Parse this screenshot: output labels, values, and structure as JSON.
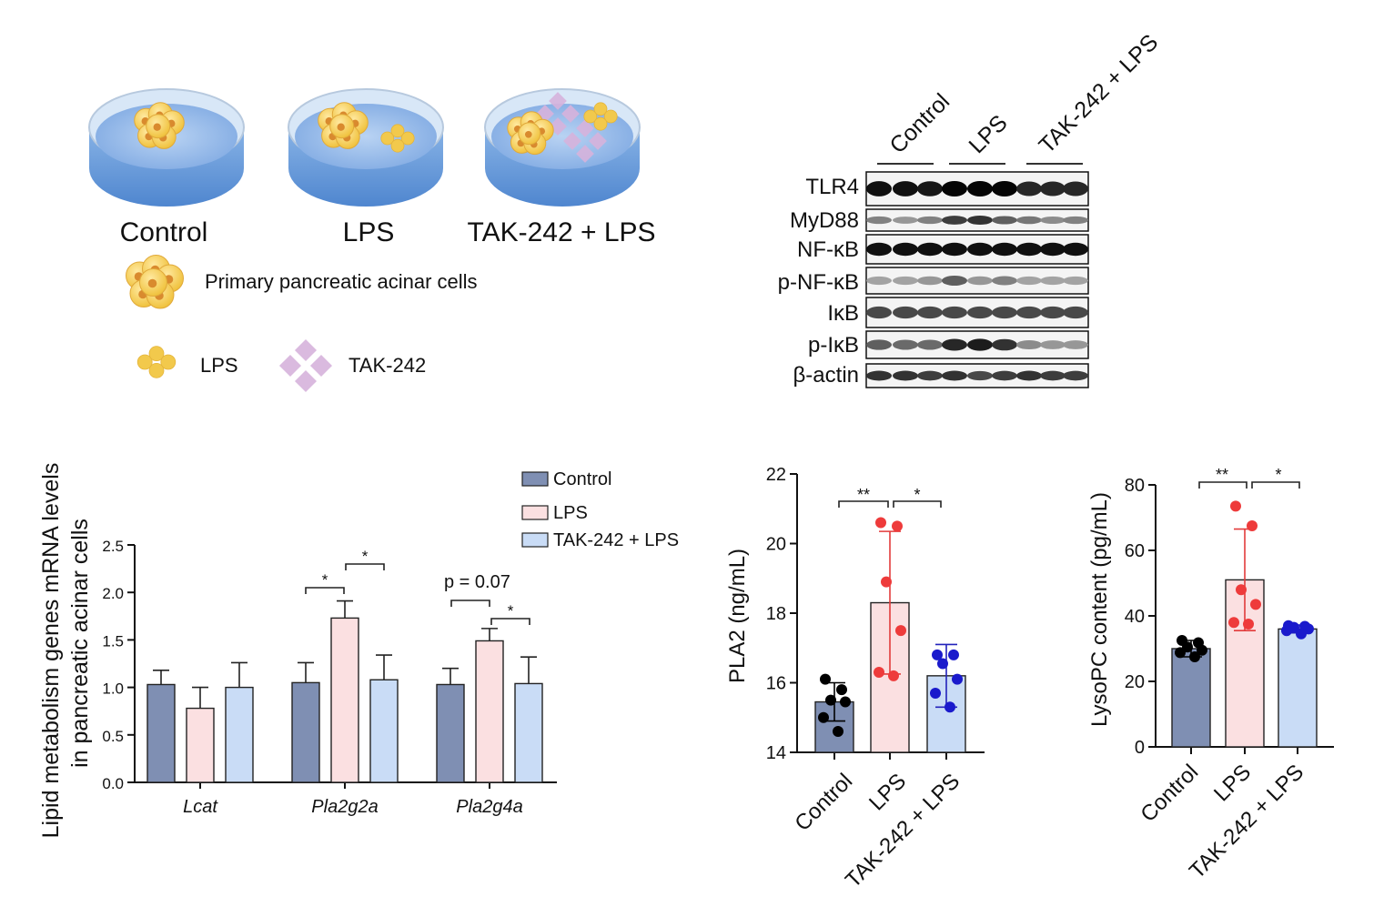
{
  "schematic": {
    "dish_labels": [
      "Control",
      "LPS",
      "TAK-242 + LPS"
    ],
    "legend": {
      "acinar_label": "Primary pancreatic acinar cells",
      "lps_label": "LPS",
      "tak_label": "TAK-242"
    },
    "colors": {
      "cell": "#f2c94c",
      "cell_core": "#d98a2e",
      "tak": "#d6b3dc",
      "medium": "#6fa1df"
    }
  },
  "western_blot": {
    "groups": [
      "Control",
      "LPS",
      "TAK-242 + LPS"
    ],
    "proteins": [
      "TLR4",
      "MyD88",
      "NF-κB",
      "p-NF-κB",
      "IκB",
      "p-IκB",
      "β-actin"
    ],
    "band_intensity": [
      [
        0.95,
        0.95,
        0.92,
        1.0,
        1.0,
        1.0,
        0.85,
        0.85,
        0.85
      ],
      [
        0.45,
        0.35,
        0.45,
        0.75,
        0.8,
        0.6,
        0.5,
        0.4,
        0.45
      ],
      [
        0.95,
        0.95,
        0.95,
        0.95,
        0.95,
        0.95,
        0.95,
        0.95,
        0.95
      ],
      [
        0.3,
        0.3,
        0.35,
        0.6,
        0.35,
        0.45,
        0.3,
        0.3,
        0.3
      ],
      [
        0.7,
        0.7,
        0.7,
        0.7,
        0.7,
        0.7,
        0.7,
        0.7,
        0.7
      ],
      [
        0.6,
        0.55,
        0.55,
        0.85,
        0.9,
        0.8,
        0.4,
        0.35,
        0.35
      ],
      [
        0.8,
        0.8,
        0.75,
        0.8,
        0.7,
        0.75,
        0.8,
        0.75,
        0.75
      ]
    ]
  },
  "chart_data": [
    {
      "type": "bar",
      "title": "",
      "ylabel_line1": "Lipid metabolism genes  mRNA levels",
      "ylabel_line2": "in pancreatic acinar cells",
      "xlabel": "",
      "ylim": [
        0,
        2.5
      ],
      "yticks": [
        "0.0",
        "0.5",
        "1.0",
        "1.5",
        "2.0",
        "2.5"
      ],
      "categories": [
        "Lcat",
        "Pla2g2a",
        "Pla2g4a"
      ],
      "series": [
        {
          "name": "Control",
          "values": [
            1.03,
            1.05,
            1.03
          ],
          "errors": [
            0.15,
            0.21,
            0.17
          ],
          "color": "#7f8fb3"
        },
        {
          "name": "LPS",
          "values": [
            0.78,
            1.73,
            1.49
          ],
          "errors": [
            0.22,
            0.18,
            0.13
          ],
          "color": "#fbe0e1"
        },
        {
          "name": "TAK-242 + LPS",
          "values": [
            1.0,
            1.08,
            1.04
          ],
          "errors": [
            0.26,
            0.26,
            0.28
          ],
          "color": "#c9dcf6"
        }
      ],
      "legend": [
        "Control",
        "LPS",
        "TAK-242 + LPS"
      ],
      "annotations": [
        "*",
        "*",
        "p = 0.07",
        "*"
      ]
    },
    {
      "type": "bar",
      "title": "",
      "ylabel": "PLA2 (ng/mL)",
      "ylim": [
        14,
        22
      ],
      "yticks": [
        "14",
        "16",
        "18",
        "20",
        "22"
      ],
      "categories": [
        "Control",
        "LPS",
        "TAK-242 + LPS"
      ],
      "values": [
        15.45,
        18.3,
        16.2
      ],
      "errors": [
        0.55,
        2.05,
        0.9
      ],
      "points": [
        [
          16.1,
          15.8,
          15.5,
          15.45,
          15.0,
          14.6
        ],
        [
          20.6,
          20.5,
          18.9,
          17.5,
          16.3,
          16.2
        ],
        [
          16.8,
          16.8,
          16.55,
          16.1,
          15.7,
          15.3
        ]
      ],
      "colors": [
        "#7f8fb3",
        "#fbe0e1",
        "#c9dcf6"
      ],
      "point_colors": [
        "#000000",
        "#ee3b3b",
        "#1a1acc"
      ],
      "error_colors": [
        "#000000",
        "#e23b3b",
        "#2222bb"
      ],
      "annotations": [
        "**",
        "*"
      ]
    },
    {
      "type": "bar",
      "title": "",
      "ylabel": "LysoPC content (pg/mL)",
      "ylim": [
        0,
        80
      ],
      "yticks": [
        "0",
        "20",
        "40",
        "60",
        "80"
      ],
      "categories": [
        "Control",
        "LPS",
        "TAK-242 + LPS"
      ],
      "values": [
        30,
        51,
        36
      ],
      "errors": [
        2.5,
        15.5,
        1.2
      ],
      "points": [
        [
          32.5,
          31.8,
          30.5,
          29.5,
          28.8,
          27.5
        ],
        [
          73.5,
          67.5,
          48,
          43.5,
          38,
          37.5
        ],
        [
          37,
          36.8,
          36.5,
          36,
          35.5,
          34.5
        ]
      ],
      "colors": [
        "#7f8fb3",
        "#fbe0e1",
        "#c9dcf6"
      ],
      "point_colors": [
        "#000000",
        "#ee3b3b",
        "#1a1acc"
      ],
      "error_colors": [
        "#000000",
        "#e23b3b",
        "#2222bb"
      ],
      "annotations": [
        "**",
        "*"
      ]
    }
  ]
}
